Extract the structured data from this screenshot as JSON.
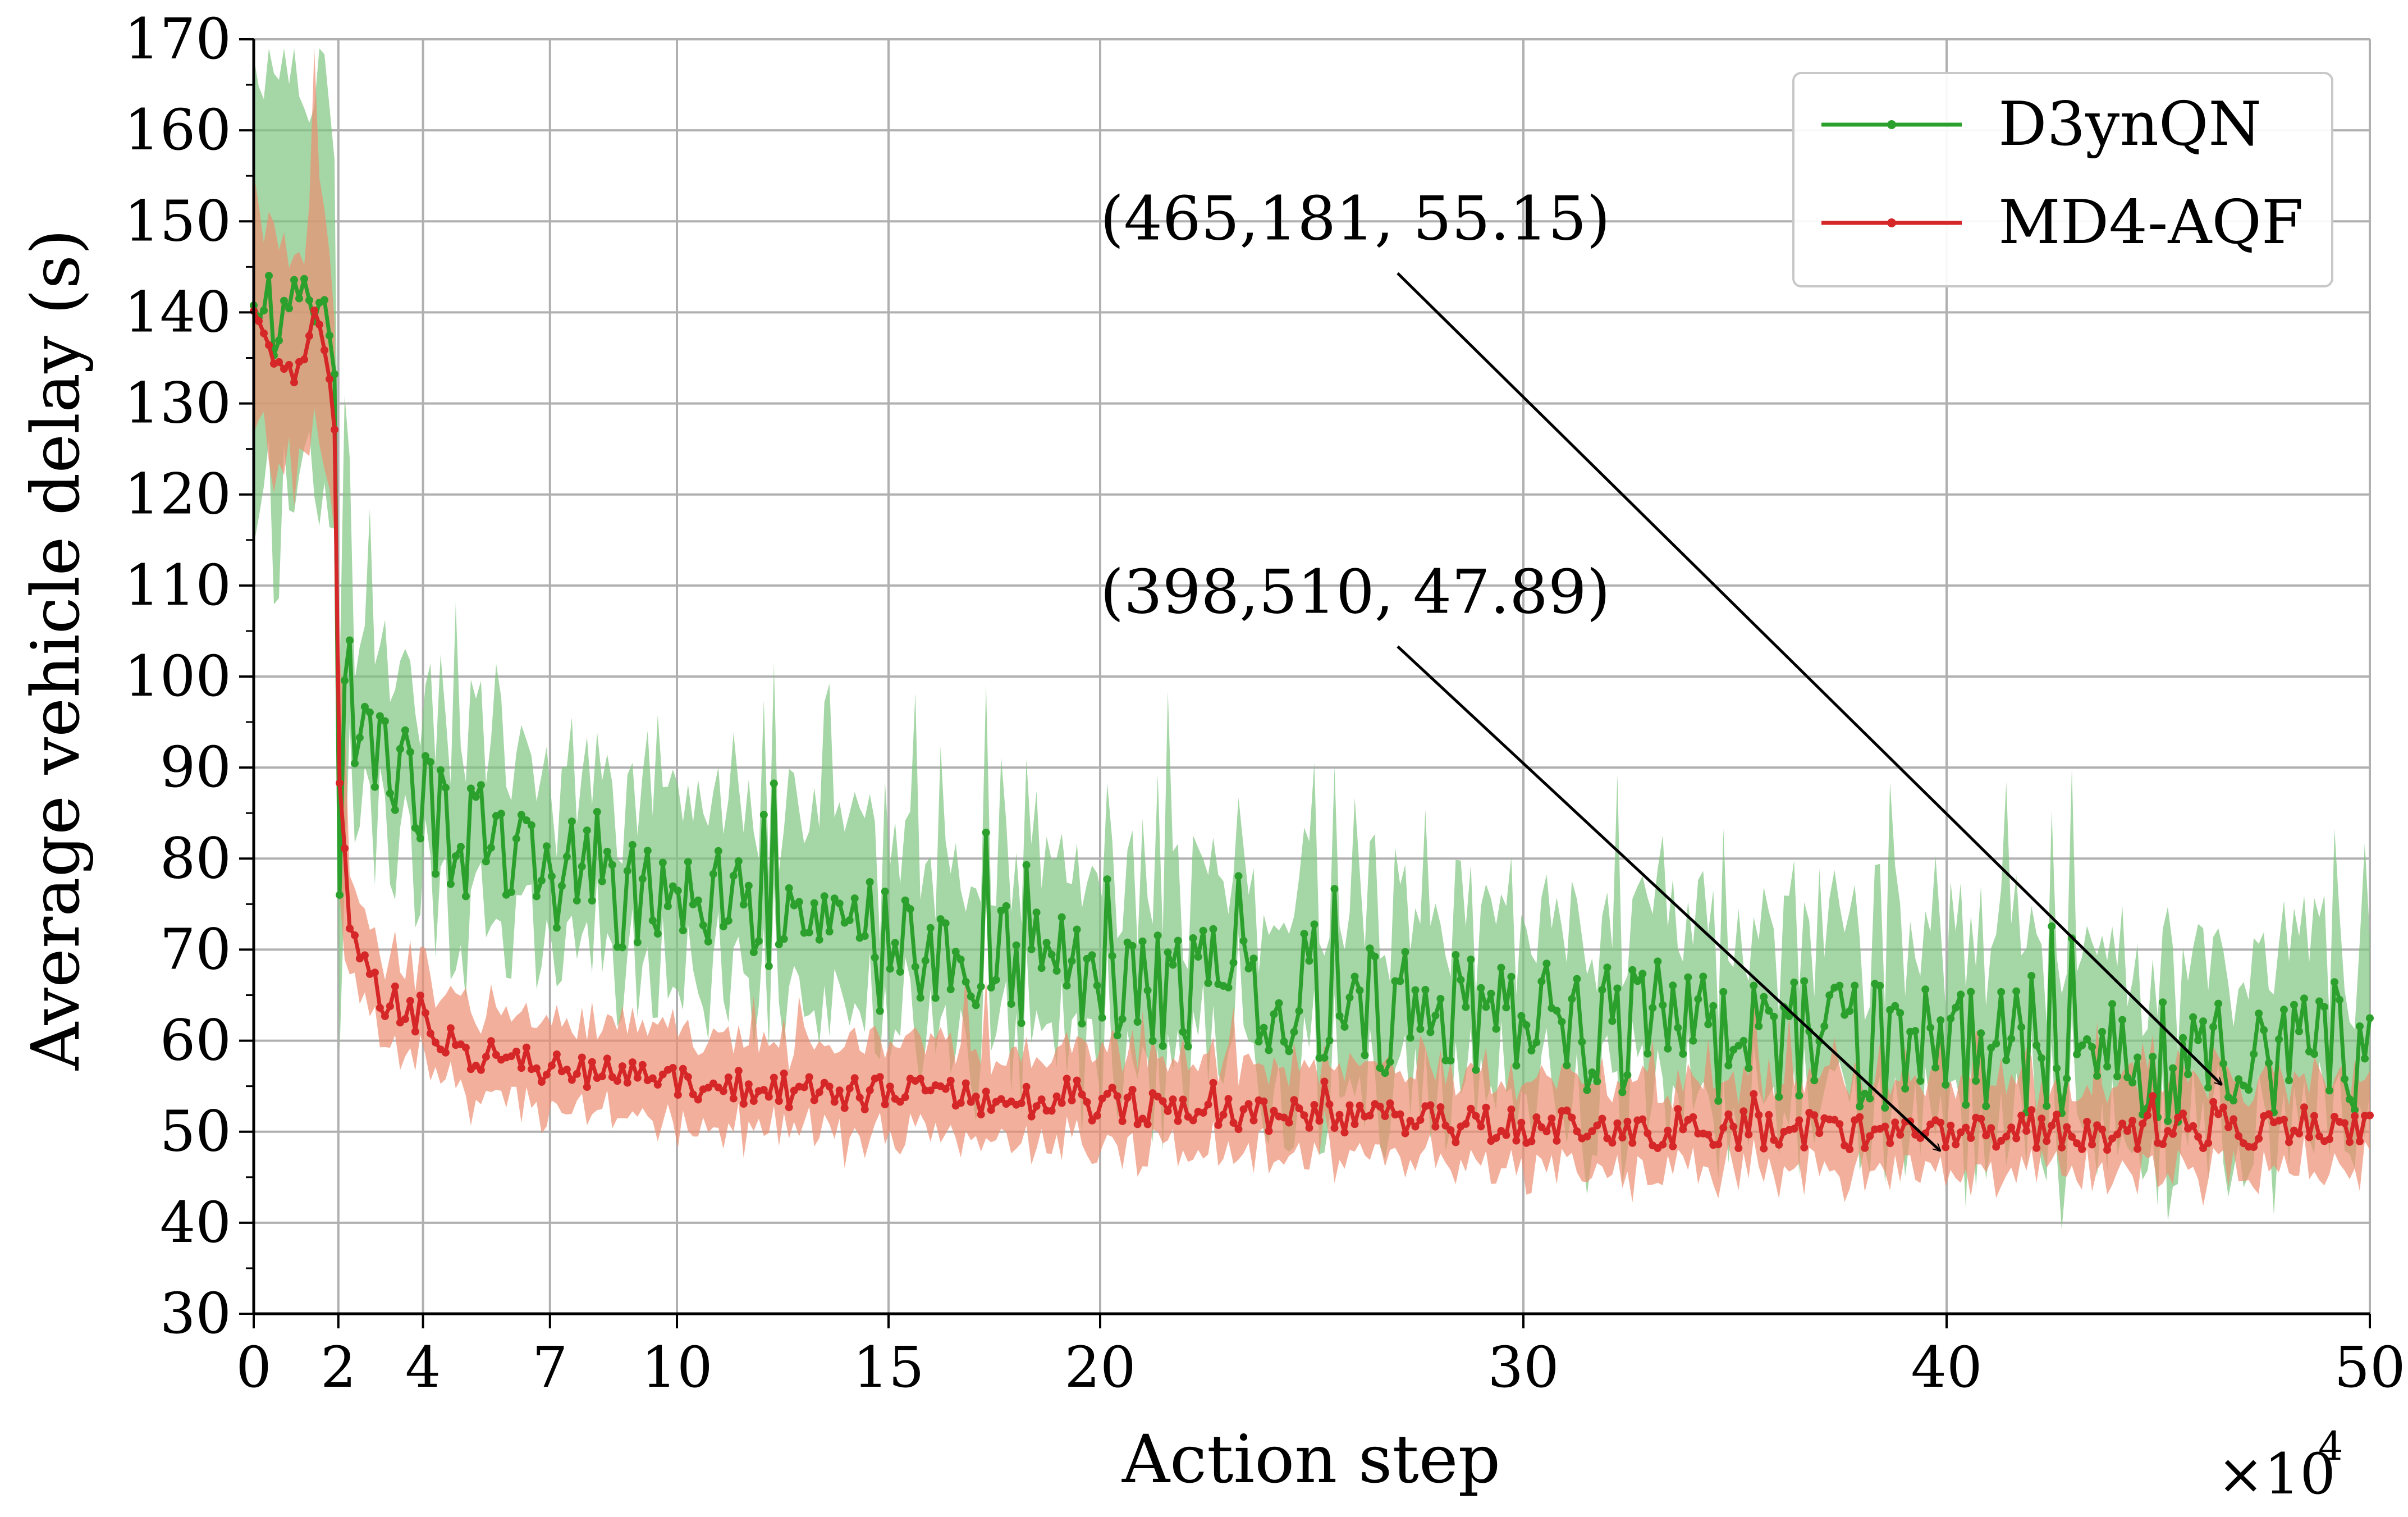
{
  "chart_data": {
    "type": "line",
    "title": "",
    "xlabel": "Action step",
    "ylabel": "Average vehicle delay (s)",
    "x_multiplier_label": "×10",
    "x_multiplier_exp": "4",
    "xlim": [
      0,
      50
    ],
    "ylim": [
      30,
      170
    ],
    "x_ticks": [
      0,
      2,
      4,
      7,
      10,
      15,
      20,
      30,
      40,
      50
    ],
    "y_ticks": [
      30,
      40,
      50,
      60,
      70,
      80,
      90,
      100,
      110,
      120,
      130,
      140,
      150,
      160,
      170
    ],
    "grid": true,
    "legend_position": "top-right",
    "series": [
      {
        "name": "D3ynQN",
        "color": "#2ca02c",
        "band_color": "#7fc47f",
        "keypoints": [
          [
            0,
            142
          ],
          [
            0.5,
            138
          ],
          [
            1,
            141
          ],
          [
            1.5,
            142
          ],
          [
            1.9,
            140
          ],
          [
            2.0,
            80
          ],
          [
            2.2,
            100
          ],
          [
            2.5,
            93
          ],
          [
            3,
            90
          ],
          [
            4,
            85
          ],
          [
            5,
            82
          ],
          [
            7,
            78
          ],
          [
            10,
            75
          ],
          [
            13,
            72
          ],
          [
            15,
            70
          ],
          [
            17,
            69
          ],
          [
            20,
            67
          ],
          [
            25,
            64
          ],
          [
            30,
            62
          ],
          [
            35,
            60
          ],
          [
            40,
            59
          ],
          [
            45,
            58
          ],
          [
            50,
            58
          ]
        ],
        "noise_amplitude": 7,
        "band_half_width": 10
      },
      {
        "name": "MD4-AQF",
        "color": "#d62728",
        "band_color": "#ec8e72",
        "keypoints": [
          [
            0,
            140
          ],
          [
            0.5,
            135
          ],
          [
            1,
            133
          ],
          [
            1.5,
            140
          ],
          [
            1.9,
            130
          ],
          [
            2.0,
            92
          ],
          [
            2.2,
            75
          ],
          [
            2.6,
            68
          ],
          [
            3,
            65
          ],
          [
            4,
            62
          ],
          [
            5,
            59
          ],
          [
            7,
            57
          ],
          [
            10,
            55
          ],
          [
            15,
            54
          ],
          [
            20,
            53
          ],
          [
            25,
            51.5
          ],
          [
            30,
            50.5
          ],
          [
            35,
            50
          ],
          [
            40,
            50
          ],
          [
            45,
            50
          ],
          [
            50,
            50
          ]
        ],
        "noise_amplitude": 2,
        "band_half_width": 5
      }
    ],
    "annotations": [
      {
        "text": "(465,181, 55.15)",
        "point": [
          46.5,
          55.15
        ],
        "text_anchor_data": [
          20,
          148
        ]
      },
      {
        "text": "(398,510, 47.89)",
        "point": [
          39.85,
          47.89
        ],
        "text_anchor_data": [
          20,
          107
        ]
      }
    ]
  }
}
